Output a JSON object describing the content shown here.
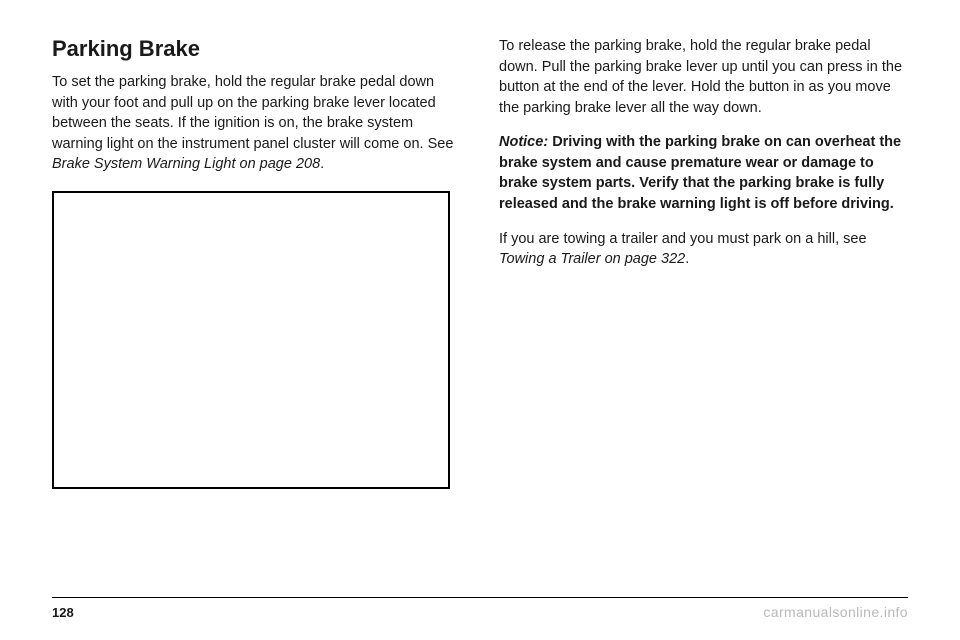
{
  "left": {
    "title": "Parking Brake",
    "para1_part1": "To set the parking brake, hold the regular brake pedal down with your foot and pull up on the parking brake lever located between the seats. If the ignition is on, the brake system warning light on the instrument panel cluster will come on. See ",
    "para1_ref": "Brake System Warning Light on page 208",
    "para1_part2": "."
  },
  "right": {
    "para1": "To release the parking brake, hold the regular brake pedal down. Pull the parking brake lever up until you can press in the button at the end of the lever. Hold the button in as you move the parking brake lever all the way down.",
    "notice_label": "Notice:",
    "notice_body": "Driving with the parking brake on can overheat the brake system and cause premature wear or damage to brake system parts. Verify that the parking brake is fully released and the brake warning light is off before driving.",
    "para3_part1": "If you are towing a trailer and you must park on a hill, see ",
    "para3_ref": "Towing a Trailer on page 322",
    "para3_part2": "."
  },
  "footer": {
    "page_number": "128",
    "watermark": "carmanualsonline.info"
  }
}
